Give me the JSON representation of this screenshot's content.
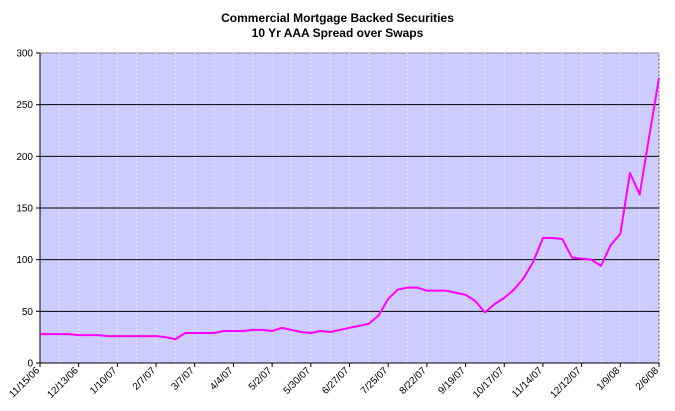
{
  "chart_data": {
    "type": "line",
    "title": "Commercial Mortgage Backed Securities",
    "subtitle": "10 Yr AAA Spread over Swaps",
    "xlabel": "",
    "ylabel": "",
    "ylim": [
      0,
      300
    ],
    "yticks": [
      0,
      50,
      100,
      150,
      200,
      250,
      300
    ],
    "x_tick_labels": [
      "11/15/06",
      "12/13/06",
      "1/10/07",
      "2/7/07",
      "3/7/07",
      "4/4/07",
      "5/2/07",
      "5/30/07",
      "6/27/07",
      "7/25/07",
      "8/22/07",
      "9/19/07",
      "10/17/07",
      "11/14/07",
      "12/12/07",
      "1/9/08",
      "2/6/08"
    ],
    "grid": "horizontal",
    "legend": "none",
    "colors": {
      "plot_background": "#ccccff",
      "line": "#ff00ff",
      "gridline": "#000000"
    },
    "series": [
      {
        "values": [
          28,
          28,
          28,
          28,
          27,
          27,
          27,
          26,
          26,
          26,
          26,
          26,
          26,
          25,
          23,
          29,
          29,
          29,
          29,
          31,
          31,
          31,
          32,
          32,
          31,
          34,
          32,
          30,
          29,
          31,
          30,
          32,
          34,
          36,
          38,
          46,
          62,
          71,
          73,
          73,
          70,
          70,
          70,
          68,
          66,
          60,
          49,
          57,
          63,
          71,
          82,
          98,
          121,
          121,
          120,
          102,
          101,
          100,
          94,
          114,
          125,
          184,
          163,
          220,
          276
        ]
      }
    ]
  }
}
